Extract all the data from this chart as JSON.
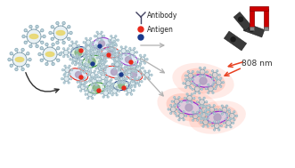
{
  "fig_width": 3.31,
  "fig_height": 1.89,
  "dpi": 100,
  "bg_color": "#ffffff",
  "legend_antibody_text": "Antibody",
  "legend_antigen_text": "Antigen",
  "legend_red_color": "#e8291c",
  "legend_blue_color": "#1a3a8c",
  "nanoparticle_shell_color": "#a0c8d8",
  "cell_outline_red": "#e8291c",
  "cell_outline_green": "#228B22",
  "cell_outline_blue": "#1a3a8c",
  "cell_outline_purple": "#9932CC",
  "magnet_red": "#cc0000",
  "magnet_gray": "#888888",
  "arrow_color": "#b0b0b0",
  "dark_shape_color": "#3a3a3a",
  "laser_arrow_color": "#e84020",
  "text_color": "#333333",
  "np_spike_color": "#7090a0",
  "np_shell_fill": "#c0d8e0",
  "np_core_color": "#e8d870",
  "heat_color1": "#ff6040",
  "heat_color2": "#ff8060"
}
